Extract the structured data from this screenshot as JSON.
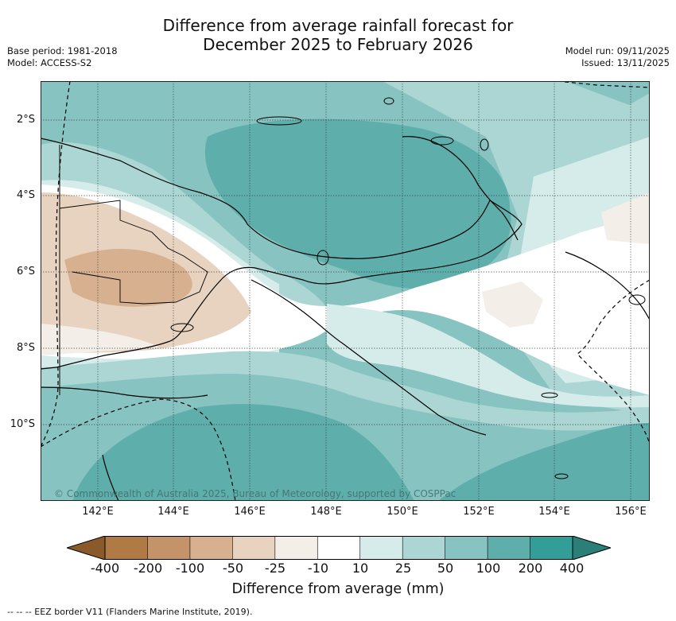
{
  "header": {
    "title_line1": "Difference from average rainfall forecast for",
    "title_line2": "December 2025 to February 2026",
    "base_period": "Base period: 1981-2018",
    "model": "Model: ACCESS-S2",
    "model_run": "Model run: 09/11/2025",
    "issued": "Issued: 13/11/2025"
  },
  "map": {
    "lat_labels": [
      "2°S",
      "4°S",
      "6°S",
      "8°S",
      "10°S"
    ],
    "lon_labels": [
      "142°E",
      "144°E",
      "146°E",
      "148°E",
      "150°E",
      "152°E",
      "154°E",
      "156°E"
    ],
    "copyright": "© Commonwealth of Australia 2025, Bureau of Meteorology, supported by COSPPac"
  },
  "colorbar": {
    "ticks": [
      "-400",
      "-200",
      "-100",
      "-50",
      "-25",
      "-10",
      "10",
      "25",
      "50",
      "100",
      "200",
      "400"
    ],
    "colors": [
      "#8b5a2b",
      "#b07a45",
      "#c49369",
      "#d6b08f",
      "#e8d3c0",
      "#f3eee8",
      "#ffffff",
      "#d5ecea",
      "#abd6d3",
      "#86c3c1",
      "#5eaeac",
      "#339e98",
      "#2a7f78"
    ],
    "label": "Difference from average (mm)"
  },
  "legend": {
    "eez": "--  --  -- EEZ border V11 (Flanders Marine Institute, 2019)."
  }
}
